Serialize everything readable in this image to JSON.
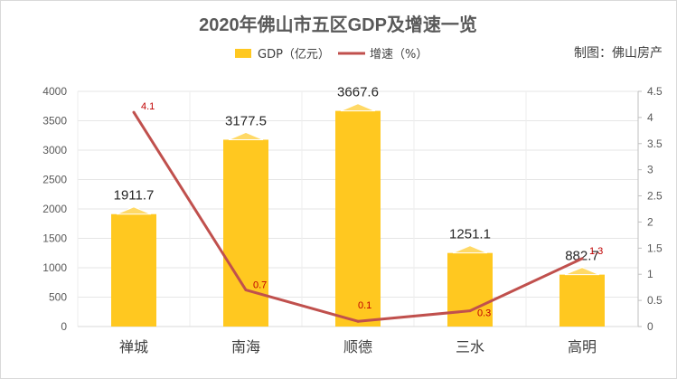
{
  "chart_data": {
    "type": "bar",
    "title": "2020年佛山市五区GDP及增速一览",
    "credit": "制图：佛山房产",
    "categories": [
      "禅城",
      "南海",
      "顺德",
      "三水",
      "高明"
    ],
    "series": [
      {
        "name": "GDP（亿元）",
        "type": "bar",
        "axis": "left",
        "color": "#FFC820",
        "values": [
          1911.7,
          3177.5,
          3667.6,
          1251.1,
          882.7
        ],
        "labels": [
          "1911.7",
          "3177.5",
          "3667.6",
          "1251.1",
          "882.7"
        ]
      },
      {
        "name": "增速（%）",
        "type": "line",
        "axis": "right",
        "color": "#C0504D",
        "values": [
          4.1,
          0.7,
          0.1,
          0.3,
          1.3
        ],
        "labels": [
          "4.1",
          "0.7",
          "0.1",
          "0.3",
          "1.3"
        ]
      }
    ],
    "y_left": {
      "min": 0,
      "max": 4000,
      "ticks": [
        "0",
        "500",
        "1000",
        "1500",
        "2000",
        "2500",
        "3000",
        "3500",
        "4000"
      ]
    },
    "y_right": {
      "min": 0,
      "max": 4.5,
      "ticks": [
        "0",
        "0.5",
        "1",
        "1.5",
        "2",
        "2.5",
        "3",
        "3.5",
        "4",
        "4.5"
      ]
    },
    "grid": true,
    "legend_position": "top"
  }
}
